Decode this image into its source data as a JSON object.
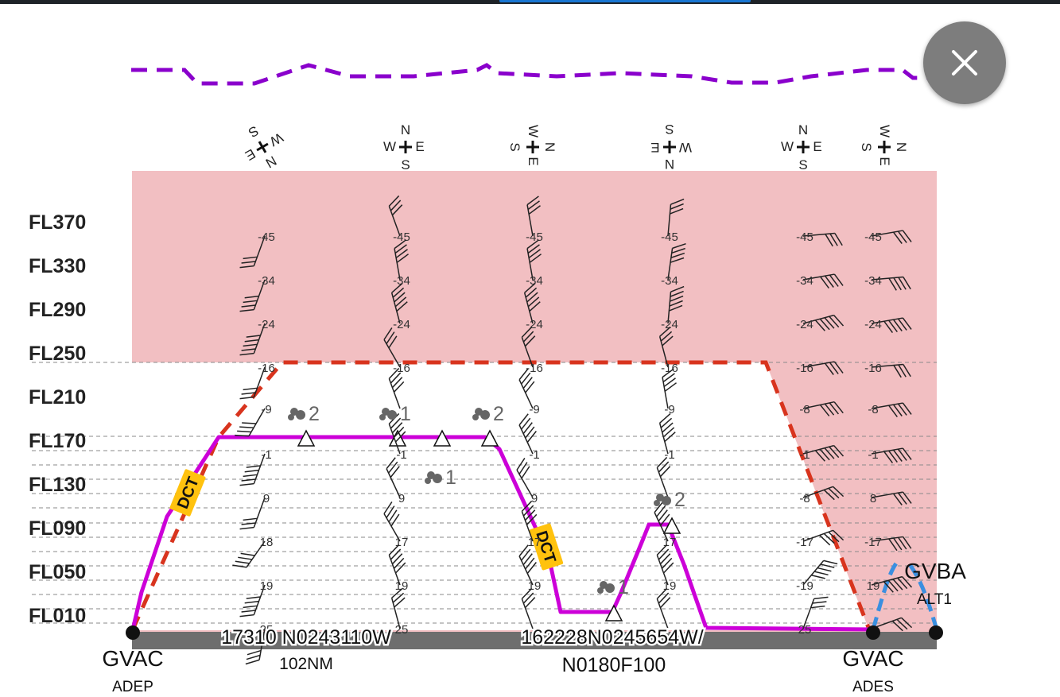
{
  "dialog": {
    "close_icon": "close-icon"
  },
  "flight_levels": [
    "FL370",
    "FL330",
    "FL290",
    "FL250",
    "FL210",
    "FL170",
    "FL130",
    "FL090",
    "FL050",
    "FL010"
  ],
  "temperature_rows": [
    "-45",
    "-34",
    "-24",
    "-16",
    "-9",
    "-1",
    "9",
    "18",
    "19",
    "25"
  ],
  "columns": [
    {
      "temps": [
        "-45",
        "-34",
        "-24",
        "-16",
        "-9",
        "-1",
        "9",
        "18",
        "19",
        "25"
      ],
      "compass": {
        "n": "N",
        "e": "E",
        "s": "S",
        "w": "W"
      }
    },
    {
      "temps": [
        "-45",
        "-34",
        "-24",
        "-16",
        "",
        "-1",
        "9",
        "17",
        "19",
        "25"
      ],
      "compass": {
        "n": "N",
        "e": "E",
        "s": "S",
        "w": "W"
      }
    },
    {
      "temps": [
        "-45",
        "-34",
        "-24",
        "-16",
        "-9",
        "-1",
        "9",
        "17",
        "19",
        ""
      ],
      "compass": {
        "n": "N",
        "e": "E",
        "s": "S",
        "w": "W"
      }
    },
    {
      "temps": [
        "-45",
        "-34",
        "-24",
        "-16",
        "-9",
        "-1",
        "",
        "17",
        "19",
        ""
      ],
      "compass": {
        "n": "N",
        "e": "E",
        "s": "S",
        "w": "W"
      }
    },
    {
      "temps": [
        "-45",
        "-34",
        "-24",
        "-16",
        "-8",
        "-1",
        "-8",
        "-17",
        "-19",
        "25"
      ],
      "compass": {
        "n": "N",
        "e": "E",
        "s": "S",
        "w": "W"
      }
    },
    {
      "temps": [
        "-45",
        "-34",
        "-24",
        "-16",
        "-8",
        "-1",
        "8",
        "-17",
        "19",
        ""
      ],
      "compass": {
        "n": "N",
        "e": "E",
        "s": "S",
        "w": "W"
      }
    }
  ],
  "turbulence": [
    {
      "value": "2"
    },
    {
      "value": "1"
    },
    {
      "value": "2"
    },
    {
      "value": "1"
    },
    {
      "value": "2"
    },
    {
      "value": "1"
    }
  ],
  "route_labels": {
    "dct_1": "DCT",
    "dct_2": "DCT"
  },
  "departure": {
    "code": "GVAC",
    "role": "ADEP"
  },
  "destination": {
    "code": "GVAC",
    "role": "ADES"
  },
  "alternate": {
    "code": "GVBA",
    "role": "ALT1"
  },
  "waypoints": [
    {
      "name": "17310 N0243110W",
      "distance": "102NM"
    },
    {
      "name": "162228N0245654W/",
      "speed_level": "N0180F100"
    }
  ],
  "colors": {
    "restricted_zone": "#f2bfc2",
    "planned_profile": "#cc00d8",
    "ceiling_profile": "#d8341e",
    "top_profile": "#8a00cc",
    "alternate_route": "#3a8fe0",
    "ground_bar": "#6e6e6e",
    "dct_badge": "#ffc20e"
  }
}
